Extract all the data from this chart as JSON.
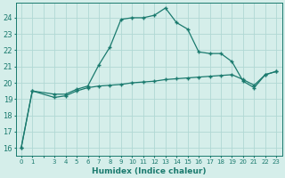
{
  "xlabel": "Humidex (Indice chaleur)",
  "ylabel": "",
  "background_color": "#d5eeea",
  "grid_color": "#b0d8d4",
  "line_color": "#1a7a6e",
  "xlim": [
    -0.5,
    23.5
  ],
  "ylim": [
    15.5,
    24.9
  ],
  "yticks": [
    16,
    17,
    18,
    19,
    20,
    21,
    22,
    23,
    24
  ],
  "xticks": [
    0,
    1,
    2,
    3,
    4,
    5,
    6,
    7,
    8,
    9,
    10,
    11,
    12,
    13,
    14,
    15,
    16,
    17,
    18,
    19,
    20,
    21,
    22,
    23
  ],
  "xtick_labels": [
    "0",
    "1",
    "",
    "3",
    "4",
    "5",
    "6",
    "7",
    "8",
    "9",
    "10",
    "11",
    "12",
    "13",
    "14",
    "15",
    "16",
    "17",
    "18",
    "19",
    "20",
    "21",
    "22",
    "23"
  ],
  "line1_x": [
    0,
    1,
    3,
    4,
    5,
    6,
    7,
    8,
    9,
    10,
    11,
    12,
    13,
    14,
    15,
    16,
    17,
    18,
    19,
    20,
    21,
    22,
    23
  ],
  "line1_y": [
    16.0,
    19.5,
    19.3,
    19.3,
    19.6,
    19.8,
    21.1,
    22.2,
    23.9,
    24.0,
    24.0,
    24.15,
    24.6,
    23.7,
    23.3,
    21.9,
    21.8,
    21.8,
    21.3,
    20.1,
    19.7,
    20.5,
    20.7
  ],
  "line2_x": [
    0,
    1,
    3,
    4,
    5,
    6,
    7,
    8,
    9,
    10,
    11,
    12,
    13,
    14,
    15,
    16,
    17,
    18,
    19,
    20,
    21,
    22,
    23
  ],
  "line2_y": [
    16.0,
    19.5,
    19.1,
    19.2,
    19.5,
    19.7,
    19.8,
    19.85,
    19.9,
    20.0,
    20.05,
    20.1,
    20.2,
    20.25,
    20.3,
    20.35,
    20.4,
    20.45,
    20.5,
    20.2,
    19.85,
    20.5,
    20.7
  ]
}
